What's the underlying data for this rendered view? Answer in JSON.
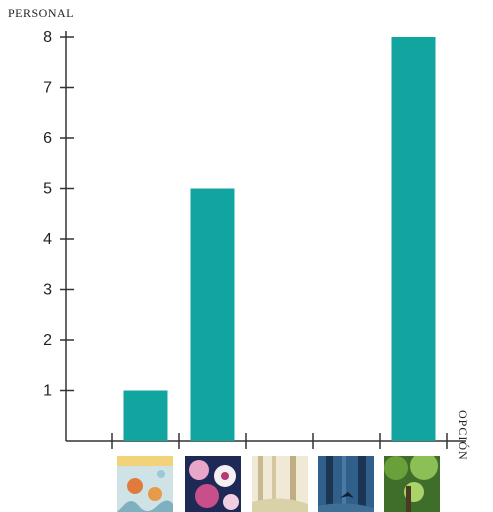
{
  "chart_data": {
    "type": "bar",
    "ylabel": "PERSONAL",
    "xlabel": "OPCIÓN",
    "ylim": [
      0,
      8
    ],
    "yticks": [
      1,
      2,
      3,
      4,
      5,
      6,
      7,
      8
    ],
    "categories": [
      "",
      "",
      "",
      "",
      ""
    ],
    "values": [
      1,
      5,
      0,
      0,
      8
    ],
    "bar_color": "#12a5a0",
    "grid": false
  },
  "thumbnails": [
    {
      "icon": "underwater-painting-thumbnail"
    },
    {
      "icon": "floral-pattern-thumbnail"
    },
    {
      "icon": "misty-forest-thumbnail"
    },
    {
      "icon": "blue-forest-bird-thumbnail"
    },
    {
      "icon": "green-forest-thumbnail"
    }
  ]
}
